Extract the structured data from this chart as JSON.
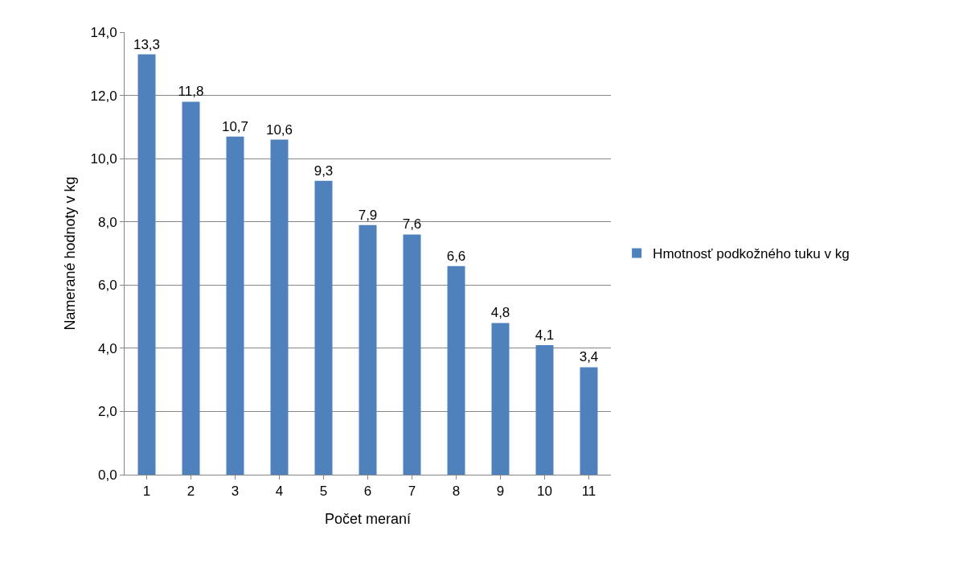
{
  "chart_data": {
    "type": "bar",
    "xlabel": "Počet meraní",
    "ylabel": "Namerané hodnoty v kg",
    "categories": [
      "1",
      "2",
      "3",
      "4",
      "5",
      "6",
      "7",
      "8",
      "9",
      "10",
      "11"
    ],
    "series": [
      {
        "name": "Hmotnosť podkožného tuku v kg",
        "color": "#4f81bd",
        "values": [
          13.3,
          11.8,
          10.7,
          10.6,
          9.3,
          7.9,
          7.6,
          6.6,
          4.8,
          4.1,
          3.4
        ],
        "value_labels": [
          "13,3",
          "11,8",
          "10,7",
          "10,6",
          "9,3",
          "7,9",
          "7,6",
          "6,6",
          "4,8",
          "4,1",
          "3,4"
        ]
      }
    ],
    "ylim": [
      0,
      14
    ],
    "yticks": [
      {
        "value": 0,
        "label": "0,0"
      },
      {
        "value": 2,
        "label": "2,0"
      },
      {
        "value": 4,
        "label": "4,0"
      },
      {
        "value": 6,
        "label": "6,0"
      },
      {
        "value": 8,
        "label": "8,0"
      },
      {
        "value": 10,
        "label": "10,0"
      },
      {
        "value": 12,
        "label": "12,0"
      },
      {
        "value": 14,
        "label": "14,0"
      }
    ],
    "grid": "y",
    "legend": "right"
  }
}
